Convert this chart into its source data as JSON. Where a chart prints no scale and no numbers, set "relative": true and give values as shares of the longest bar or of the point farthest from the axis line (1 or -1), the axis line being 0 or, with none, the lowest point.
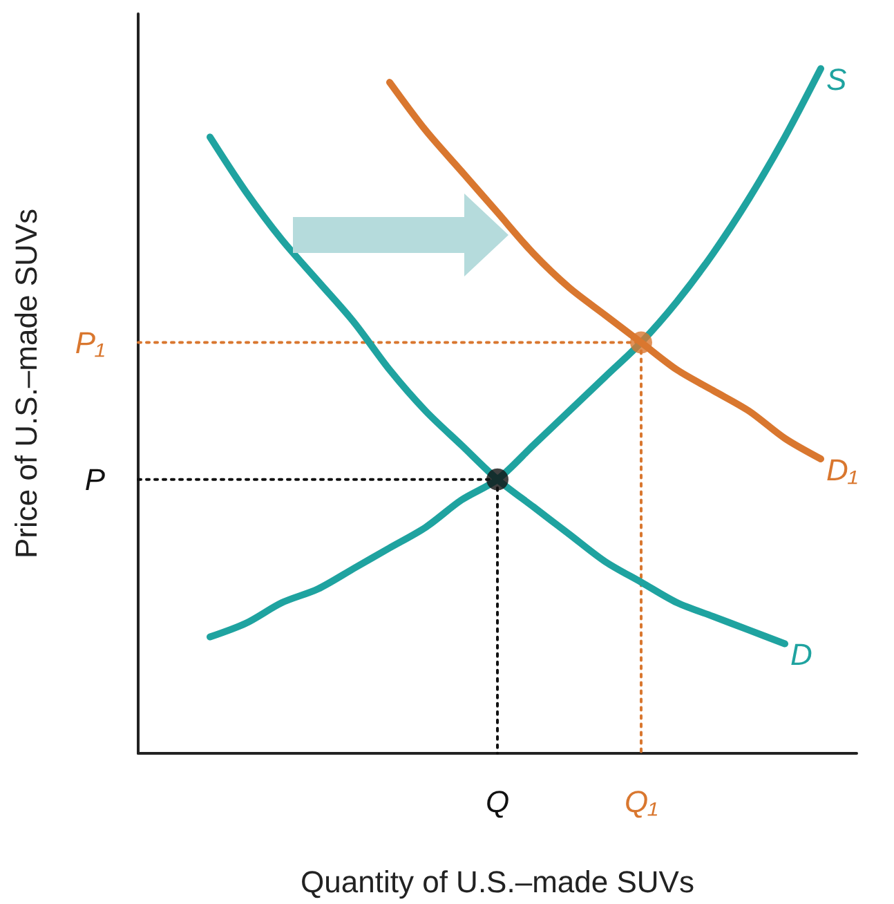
{
  "chart_data": {
    "type": "line",
    "relative": true,
    "xlabel": "Quantity of U.S.–made SUVs",
    "ylabel": "Price of U.S.–made SUVs",
    "categories": [
      null,
      null,
      null,
      null,
      null,
      null,
      null,
      null,
      null,
      null,
      "Q",
      null,
      null,
      null,
      "Q₁",
      null,
      null,
      null,
      null,
      null,
      null
    ],
    "grid": false,
    "legend": false,
    "marker": "none",
    "line_style": "solid",
    "series": [
      {
        "name": "S",
        "color": "#1fa3a0",
        "values": [
          null,
          null,
          0.17,
          0.19,
          0.22,
          0.24,
          0.27,
          0.3,
          0.33,
          0.37,
          0.4,
          0.45,
          0.5,
          0.55,
          0.6,
          0.66,
          0.73,
          0.81,
          0.9,
          1,
          null
        ]
      },
      {
        "name": "D",
        "color": "#1fa3a0",
        "values": [
          null,
          null,
          0.9,
          0.82,
          0.75,
          0.69,
          0.63,
          0.56,
          0.5,
          0.45,
          0.4,
          0.36,
          0.32,
          0.28,
          0.25,
          0.22,
          0.2,
          0.18,
          0.16,
          null,
          null
        ]
      },
      {
        "name": "D₁",
        "color": "#d9772f",
        "values": [
          null,
          null,
          null,
          null,
          null,
          null,
          null,
          0.98,
          0.91,
          0.85,
          0.79,
          0.73,
          0.68,
          0.64,
          0.6,
          0.56,
          0.53,
          0.5,
          0.46,
          0.43,
          null
        ]
      },
      {
        "name": "P",
        "type": "line",
        "line_style": "dotted",
        "color": "#111111",
        "values": [
          0.4,
          0.4,
          0.4,
          0.4,
          0.4,
          0.4,
          0.4,
          0.4,
          0.4,
          0.4,
          0.4,
          null,
          null,
          null,
          null,
          null,
          null,
          null,
          null,
          null,
          null
        ]
      },
      {
        "type": "line",
        "line_style": "dotted",
        "color": "#111111",
        "x": [
          "Q",
          "Q"
        ],
        "values": [
          0.4,
          0
        ]
      },
      {
        "name": "P₁",
        "type": "line",
        "line_style": "dotted",
        "color": "#d9772f",
        "values": [
          0.6,
          0.6,
          0.6,
          0.6,
          0.6,
          0.6,
          0.6,
          0.6,
          0.6,
          0.6,
          0.6,
          0.6,
          0.6,
          0.6,
          0.6,
          null,
          null,
          null,
          null,
          null,
          null
        ]
      },
      {
        "type": "line",
        "line_style": "dotted",
        "color": "#d9772f",
        "x": [
          "Q₁",
          "Q₁"
        ],
        "values": [
          0.6,
          0
        ]
      },
      {
        "type": "scatter",
        "marker": "circle",
        "color": "#111111",
        "x": [
          "Q"
        ],
        "values": [
          0.4
        ]
      },
      {
        "type": "scatter",
        "marker": "circle",
        "color": "#d9772f",
        "x": [
          "Q₁"
        ],
        "values": [
          0.6
        ]
      }
    ]
  }
}
